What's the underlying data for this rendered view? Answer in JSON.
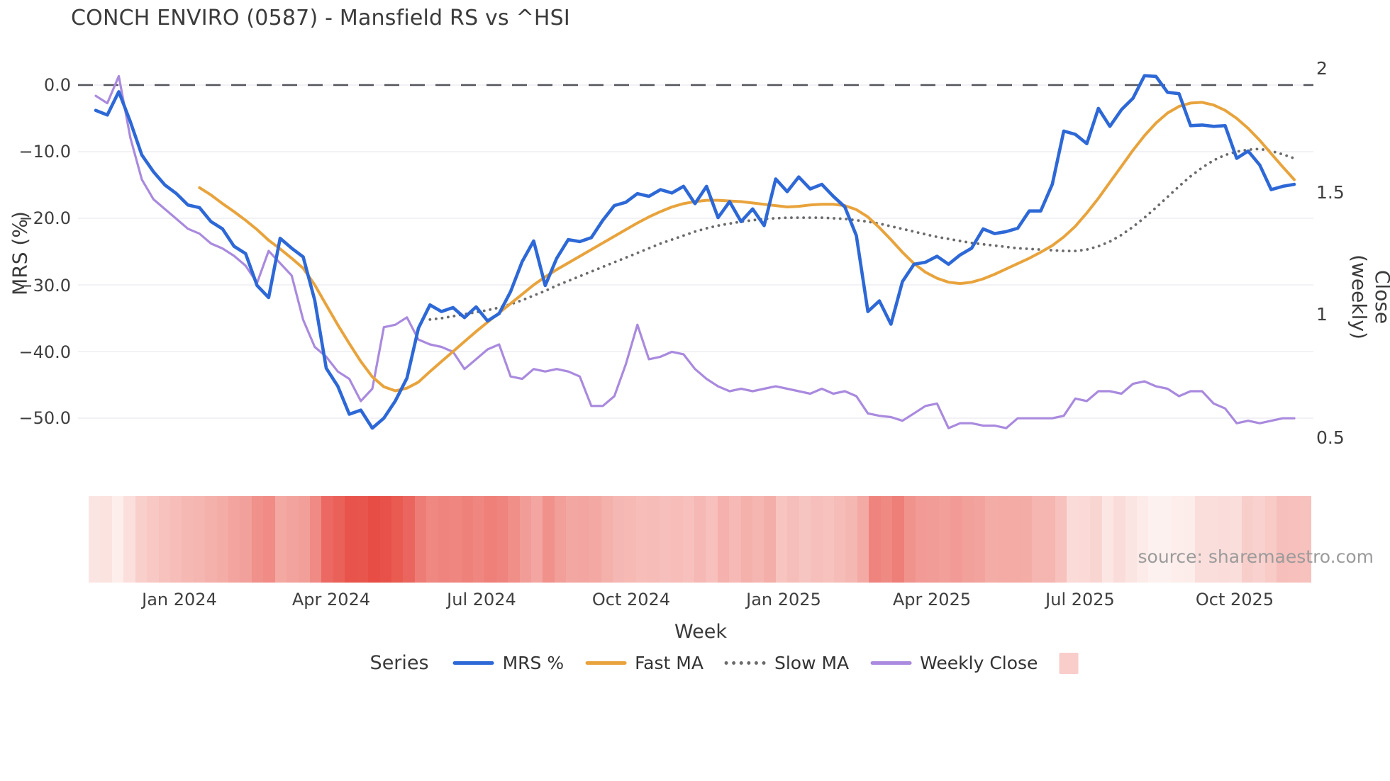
{
  "title": "CONCH ENVIRO (0587) - Mansfield RS vs ^HSI",
  "source": "source: sharemaestro.com",
  "axes": {
    "x_title": "Week",
    "y_left_title": "MRS (%)",
    "y_right_title": "Close (weekly)",
    "x_ticks": [
      "Jan 2024",
      "Apr 2024",
      "Jul 2024",
      "Oct 2024",
      "Jan 2025",
      "Apr 2025",
      "Jul 2025",
      "Oct 2025"
    ],
    "y_left_ticks": [
      "0.0",
      "−10.0",
      "−20.0",
      "−30.0",
      "−40.0",
      "−50.0"
    ],
    "y_right_ticks": [
      "2",
      "1.5",
      "1",
      "0.5"
    ]
  },
  "legend": {
    "title": "Series",
    "items": [
      {
        "label": "MRS %"
      },
      {
        "label": "Fast MA"
      },
      {
        "label": "Slow MA"
      },
      {
        "label": "Weekly Close"
      },
      {
        "label": "",
        "swatch": "heatmap-square"
      }
    ]
  },
  "colors": {
    "mrs": "#2d68d6",
    "fast_ma": "#e8a33c",
    "slow_ma": "#6b6b6b",
    "weekly_close": "#a98ade",
    "zero_line": "#53535c",
    "gridline": "#ededf3",
    "heatmap_low": "#fdf1ef",
    "heatmap_high": "#e74b42",
    "heatmap_legend_swatch": "#f8cdca"
  },
  "chart_data": {
    "type": "line",
    "title": "CONCH ENVIRO (0587) - Mansfield RS vs ^HSI",
    "x_label": "Week",
    "x_unit": "weekly points, mid-Nov 2023 to mid-Nov 2025, 105 weeks",
    "x_tick_labels": [
      "Jan 2024",
      "Apr 2024",
      "Jul 2024",
      "Oct 2024",
      "Jan 2025",
      "Apr 2025",
      "Jul 2025",
      "Oct 2025"
    ],
    "y_left": {
      "title": "MRS (%)",
      "ticks": [
        0,
        -10,
        -20,
        -30,
        -40,
        -50
      ],
      "range": [
        5,
        -57
      ]
    },
    "y_right": {
      "title": "Close (weekly)",
      "ticks": [
        2,
        1.5,
        1,
        0.5
      ],
      "range": [
        2.06,
        0.38
      ]
    },
    "zero_line": 0,
    "grid": "horizontal, faint",
    "legend_position": "bottom center with title Series",
    "series": [
      {
        "name": "MRS %",
        "axis": "left",
        "style": "solid",
        "color": "#2d68d6",
        "values": [
          -3.8,
          -4.5,
          -1.0,
          -5.5,
          -10.5,
          -13.0,
          -15.0,
          -16.3,
          -18.0,
          -18.4,
          -20.5,
          -21.6,
          -24.2,
          -25.3,
          -30.1,
          -31.9,
          -23.0,
          -24.5,
          -25.8,
          -32.3,
          -42.5,
          -45.2,
          -49.4,
          -48.8,
          -51.5,
          -50.0,
          -47.4,
          -44.0,
          -36.5,
          -33.0,
          -34.0,
          -33.4,
          -34.9,
          -33.3,
          -35.4,
          -34.3,
          -31.0,
          -26.5,
          -23.4,
          -30.1,
          -26.0,
          -23.2,
          -23.5,
          -22.9,
          -20.3,
          -18.1,
          -17.6,
          -16.3,
          -16.7,
          -15.7,
          -16.2,
          -15.2,
          -17.8,
          -15.2,
          -19.9,
          -17.5,
          -20.5,
          -18.6,
          -21.1,
          -14.1,
          -16.0,
          -13.8,
          -15.6,
          -14.9,
          -16.7,
          -18.3,
          -22.6,
          -34.0,
          -32.4,
          -35.9,
          -29.5,
          -26.9,
          -26.6,
          -25.7,
          -26.9,
          -25.5,
          -24.5,
          -21.6,
          -22.3,
          -22.0,
          -21.5,
          -18.9,
          -18.9,
          -14.9,
          -6.9,
          -7.4,
          -8.8,
          -3.5,
          -6.2,
          -3.7,
          -2.0,
          1.4,
          1.3,
          -1.1,
          -1.3,
          -6.1,
          -6.0,
          -6.2,
          -6.1,
          -11.0,
          -9.9,
          -12.0,
          -15.7,
          -15.2,
          -14.9
        ]
      },
      {
        "name": "Fast MA",
        "axis": "left",
        "style": "solid",
        "color": "#e8a33c",
        "values": [
          null,
          null,
          null,
          null,
          null,
          null,
          null,
          null,
          null,
          -15.4,
          -16.5,
          -17.8,
          -19.0,
          -20.3,
          -21.7,
          -23.3,
          -24.6,
          -26.0,
          -27.5,
          -30.0,
          -33.0,
          -36.0,
          -38.8,
          -41.5,
          -43.8,
          -45.3,
          -45.9,
          -45.5,
          -44.6,
          -43.0,
          -41.5,
          -40.0,
          -38.5,
          -37.0,
          -35.6,
          -34.2,
          -32.8,
          -31.4,
          -30.0,
          -28.8,
          -27.7,
          -26.7,
          -25.7,
          -24.7,
          -23.7,
          -22.7,
          -21.7,
          -20.7,
          -19.8,
          -19.0,
          -18.3,
          -17.8,
          -17.5,
          -17.3,
          -17.3,
          -17.4,
          -17.5,
          -17.7,
          -17.9,
          -18.1,
          -18.3,
          -18.2,
          -18.0,
          -17.9,
          -17.9,
          -18.1,
          -18.7,
          -19.8,
          -21.4,
          -23.2,
          -25.1,
          -26.8,
          -28.1,
          -29.0,
          -29.6,
          -29.8,
          -29.6,
          -29.1,
          -28.4,
          -27.6,
          -26.8,
          -26.0,
          -25.1,
          -24.1,
          -22.8,
          -21.2,
          -19.2,
          -17.0,
          -14.6,
          -12.2,
          -9.8,
          -7.6,
          -5.7,
          -4.2,
          -3.2,
          -2.7,
          -2.6,
          -3.0,
          -3.8,
          -5.0,
          -6.5,
          -8.3,
          -10.3,
          -12.3,
          -14.2
        ]
      },
      {
        "name": "Slow MA",
        "axis": "left",
        "style": "dotted",
        "color": "#6b6b6b",
        "values": [
          null,
          null,
          null,
          null,
          null,
          null,
          null,
          null,
          null,
          null,
          null,
          null,
          null,
          null,
          null,
          null,
          null,
          null,
          null,
          null,
          null,
          null,
          null,
          null,
          null,
          null,
          null,
          null,
          null,
          -35.2,
          -35.0,
          -34.7,
          -34.4,
          -34.1,
          -33.8,
          -33.4,
          -32.9,
          -32.3,
          -31.6,
          -30.9,
          -30.1,
          -29.4,
          -28.7,
          -28.0,
          -27.3,
          -26.6,
          -25.9,
          -25.2,
          -24.5,
          -23.8,
          -23.2,
          -22.6,
          -22.0,
          -21.5,
          -21.1,
          -20.8,
          -20.5,
          -20.3,
          -20.1,
          -20.0,
          -19.9,
          -19.9,
          -19.9,
          -19.9,
          -20.0,
          -20.1,
          -20.3,
          -20.5,
          -20.8,
          -21.2,
          -21.6,
          -22.0,
          -22.4,
          -22.8,
          -23.1,
          -23.4,
          -23.7,
          -23.9,
          -24.1,
          -24.3,
          -24.5,
          -24.6,
          -24.7,
          -24.8,
          -24.9,
          -24.9,
          -24.7,
          -24.2,
          -23.5,
          -22.5,
          -21.3,
          -19.9,
          -18.4,
          -16.8,
          -15.2,
          -13.7,
          -12.4,
          -11.3,
          -10.5,
          -10.0,
          -9.7,
          -9.6,
          -9.9,
          -10.4,
          -11.0
        ]
      },
      {
        "name": "Weekly Close",
        "axis": "right",
        "style": "solid",
        "color": "#a98ade",
        "values": [
          1.89,
          1.86,
          1.97,
          1.72,
          1.55,
          1.47,
          1.43,
          1.39,
          1.35,
          1.33,
          1.29,
          1.27,
          1.24,
          1.2,
          1.13,
          1.26,
          1.21,
          1.16,
          0.98,
          0.87,
          0.83,
          0.77,
          0.74,
          0.65,
          0.7,
          0.95,
          0.96,
          0.99,
          0.9,
          0.88,
          0.87,
          0.85,
          0.78,
          0.82,
          0.86,
          0.88,
          0.75,
          0.74,
          0.78,
          0.77,
          0.78,
          0.77,
          0.75,
          0.63,
          0.63,
          0.67,
          0.8,
          0.96,
          0.82,
          0.83,
          0.85,
          0.84,
          0.78,
          0.74,
          0.71,
          0.69,
          0.7,
          0.69,
          0.7,
          0.71,
          0.7,
          0.69,
          0.68,
          0.7,
          0.68,
          0.69,
          0.67,
          0.6,
          0.59,
          0.585,
          0.57,
          0.6,
          0.63,
          0.64,
          0.54,
          0.56,
          0.56,
          0.55,
          0.55,
          0.54,
          0.58,
          0.58,
          0.58,
          0.58,
          0.59,
          0.66,
          0.65,
          0.69,
          0.69,
          0.68,
          0.72,
          0.73,
          0.71,
          0.7,
          0.67,
          0.69,
          0.69,
          0.64,
          0.62,
          0.56,
          0.57,
          0.56,
          0.57,
          0.58,
          0.58
        ]
      }
    ],
    "heatmap_strip": {
      "derived_from": "MRS %",
      "description": "one cell per week under the plot; shading runs light pink to deep red as MRS grows more negative (deepest around Apr 2024 trough, near-white around Jul-Aug 2025)",
      "color_low": "#fdf1ef",
      "color_high": "#e74b42",
      "abs_mrs_at_max": 52
    }
  }
}
